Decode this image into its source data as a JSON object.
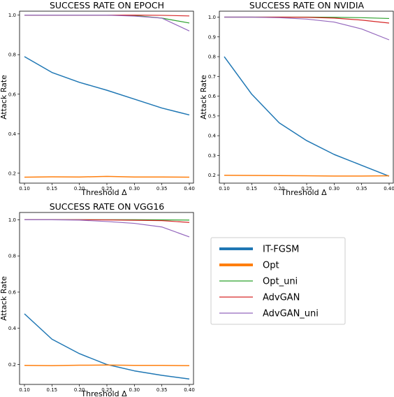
{
  "chart_data": [
    {
      "type": "line",
      "title": "SUCCESS RATE ON EPOCH",
      "xlabel": "Threshold Δ",
      "ylabel": "Attack Rate",
      "x": [
        0.1,
        0.15,
        0.2,
        0.25,
        0.3,
        0.35,
        0.4
      ],
      "xticks": [
        "0.10",
        "0.15",
        "0.20",
        "0.25",
        "0.30",
        "0.35",
        "0.40"
      ],
      "xlim": [
        0.1,
        0.4
      ],
      "ylim": [
        0.15,
        1.02
      ],
      "yticks": [
        0.2,
        0.4,
        0.6,
        0.8,
        1.0
      ],
      "ytick_labels": [
        "0.2",
        "0.4",
        "0.6",
        "0.8",
        "1.0"
      ],
      "series": [
        {
          "name": "IT-FGSM",
          "color": "#1f77b4",
          "values": [
            0.79,
            0.71,
            0.66,
            0.62,
            0.575,
            0.53,
            0.495
          ]
        },
        {
          "name": "Opt",
          "color": "#ff7f0e",
          "values": [
            0.18,
            0.182,
            0.181,
            0.184,
            0.181,
            0.181,
            0.18
          ]
        },
        {
          "name": "Opt_uni",
          "color": "#2ca02c",
          "values": [
            1.0,
            1.0,
            1.0,
            1.0,
            0.998,
            0.985,
            0.96
          ]
        },
        {
          "name": "AdvGAN",
          "color": "#d62728",
          "values": [
            1.0,
            1.0,
            1.0,
            1.0,
            1.0,
            0.999,
            0.996
          ]
        },
        {
          "name": "AdvGAN_uni",
          "color": "#9467bd",
          "values": [
            1.0,
            1.0,
            1.0,
            1.0,
            0.995,
            0.985,
            0.92
          ]
        }
      ]
    },
    {
      "type": "line",
      "title": "SUCCESS RATE ON NVIDIA",
      "xlabel": "Threshold Δ",
      "ylabel": "Attack Rate",
      "x": [
        0.1,
        0.15,
        0.2,
        0.25,
        0.3,
        0.35,
        0.4
      ],
      "xticks": [
        "0.10",
        "0.15",
        "0.20",
        "0.25",
        "0.30",
        "0.35",
        "0.40"
      ],
      "xlim": [
        0.1,
        0.4
      ],
      "ylim": [
        0.16,
        1.03
      ],
      "yticks": [
        0.2,
        0.3,
        0.4,
        0.5,
        0.6,
        0.7,
        0.8,
        0.9,
        1.0
      ],
      "ytick_labels": [
        "0.2",
        "0.3",
        "0.4",
        "0.5",
        "0.6",
        "0.7",
        "0.8",
        "0.9",
        "1.0"
      ],
      "series": [
        {
          "name": "IT-FGSM",
          "color": "#1f77b4",
          "values": [
            0.8,
            0.61,
            0.465,
            0.375,
            0.305,
            0.25,
            0.195
          ]
        },
        {
          "name": "Opt",
          "color": "#ff7f0e",
          "values": [
            0.2,
            0.199,
            0.198,
            0.197,
            0.196,
            0.196,
            0.197
          ]
        },
        {
          "name": "Opt_uni",
          "color": "#2ca02c",
          "values": [
            1.0,
            1.0,
            1.0,
            1.0,
            0.999,
            0.997,
            0.993
          ]
        },
        {
          "name": "AdvGAN",
          "color": "#d62728",
          "values": [
            1.0,
            1.0,
            1.0,
            0.999,
            0.995,
            0.985,
            0.97
          ]
        },
        {
          "name": "AdvGAN_uni",
          "color": "#9467bd",
          "values": [
            1.0,
            1.0,
            0.997,
            0.99,
            0.975,
            0.94,
            0.885
          ]
        }
      ]
    },
    {
      "type": "line",
      "title": "SUCCESS RATE ON VGG16",
      "xlabel": "Threshold Δ",
      "ylabel": "Attack Rate",
      "x": [
        0.1,
        0.15,
        0.2,
        0.25,
        0.3,
        0.35,
        0.4
      ],
      "xticks": [
        "0.10",
        "0.15",
        "0.20",
        "0.25",
        "0.30",
        "0.35",
        "0.40"
      ],
      "xlim": [
        0.1,
        0.4
      ],
      "ylim": [
        0.09,
        1.04
      ],
      "yticks": [
        0.2,
        0.4,
        0.6,
        0.8,
        1.0
      ],
      "ytick_labels": [
        "0.2",
        "0.4",
        "0.6",
        "0.8",
        "1.0"
      ],
      "series": [
        {
          "name": "IT-FGSM",
          "color": "#1f77b4",
          "values": [
            0.48,
            0.34,
            0.26,
            0.2,
            0.165,
            0.14,
            0.12
          ]
        },
        {
          "name": "Opt",
          "color": "#ff7f0e",
          "values": [
            0.195,
            0.194,
            0.196,
            0.197,
            0.195,
            0.195,
            0.194
          ]
        },
        {
          "name": "Opt_uni",
          "color": "#2ca02c",
          "values": [
            1.0,
            1.0,
            1.0,
            1.0,
            1.0,
            0.999,
            0.998
          ]
        },
        {
          "name": "AdvGAN",
          "color": "#d62728",
          "values": [
            1.0,
            1.0,
            1.0,
            0.999,
            0.997,
            0.995,
            0.985
          ]
        },
        {
          "name": "AdvGAN_uni",
          "color": "#9467bd",
          "values": [
            1.0,
            1.0,
            0.998,
            0.99,
            0.98,
            0.96,
            0.905
          ]
        }
      ]
    }
  ],
  "legend": {
    "placement": "bottom-right",
    "entries": [
      {
        "label": "IT-FGSM",
        "color": "#1f77b4",
        "weight": "bold"
      },
      {
        "label": "Opt",
        "color": "#ff7f0e",
        "weight": "bold"
      },
      {
        "label": "Opt_uni",
        "color": "#2ca02c",
        "weight": "thin"
      },
      {
        "label": "AdvGAN",
        "color": "#d62728",
        "weight": "thin"
      },
      {
        "label": "AdvGAN_uni",
        "color": "#9467bd",
        "weight": "thin"
      }
    ]
  }
}
